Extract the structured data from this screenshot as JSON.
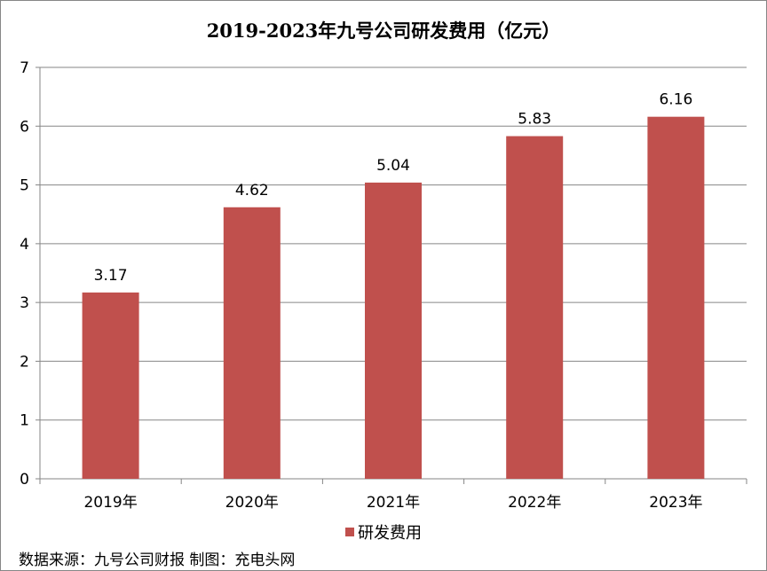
{
  "chart_data": {
    "type": "bar",
    "title": "2019-2023年九号公司研发费用（亿元）",
    "categories": [
      "2019年",
      "2020年",
      "2021年",
      "2022年",
      "2023年"
    ],
    "series": [
      {
        "name": "研发费用",
        "values": [
          3.17,
          4.62,
          5.04,
          5.83,
          6.16
        ]
      }
    ],
    "data_labels": [
      "3.17",
      "4.62",
      "5.04",
      "5.83",
      "6.16"
    ],
    "ylim": [
      0,
      7
    ],
    "yticks": [
      "0",
      "1",
      "2",
      "3",
      "4",
      "5",
      "6",
      "7"
    ],
    "grid": true,
    "legend": "bottom",
    "colors": {
      "bar": "#C0504D",
      "grid": "#868686"
    }
  },
  "source_note": "数据来源：九号公司财报 制图：充电头网"
}
